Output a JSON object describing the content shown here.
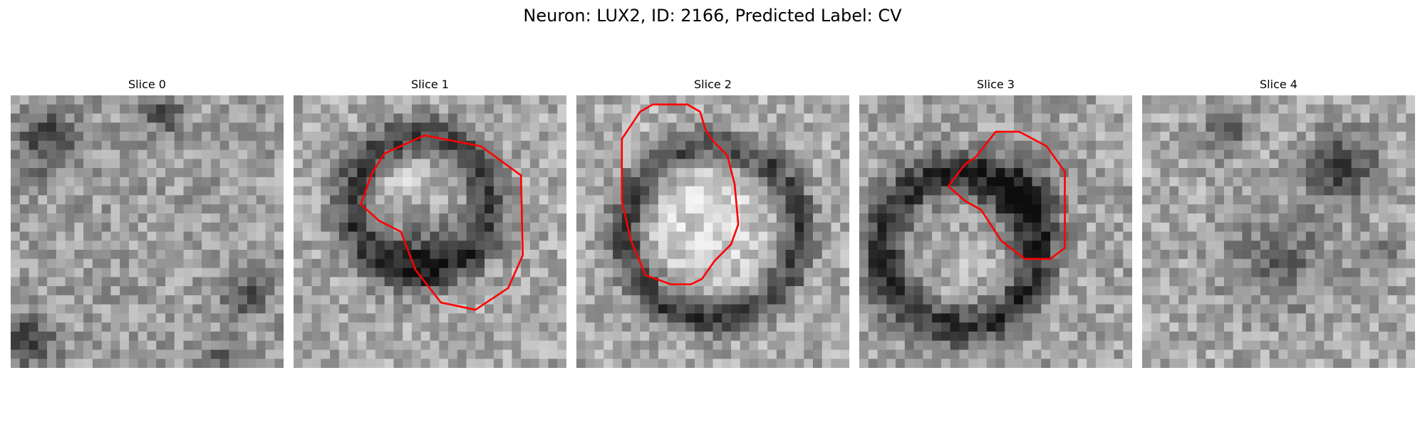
{
  "figure": {
    "title": "Neuron: LUX2, ID: 2166, Predicted Label: CV"
  },
  "panels": [
    {
      "title": "Slice 0",
      "image": "noisy-grayscale-microscopy-patch",
      "mask_outline": false
    },
    {
      "title": "Slice 1",
      "image": "noisy-grayscale-microscopy-patch-with-dark-ring",
      "mask_outline": true
    },
    {
      "title": "Slice 2",
      "image": "noisy-grayscale-microscopy-patch-with-bright-vesicle",
      "mask_outline": true
    },
    {
      "title": "Slice 3",
      "image": "noisy-grayscale-microscopy-patch-with-dark-ring",
      "mask_outline": true
    },
    {
      "title": "Slice 4",
      "image": "noisy-grayscale-microscopy-patch",
      "mask_outline": false
    }
  ],
  "colors": {
    "mask_outline": "#ff0000"
  }
}
